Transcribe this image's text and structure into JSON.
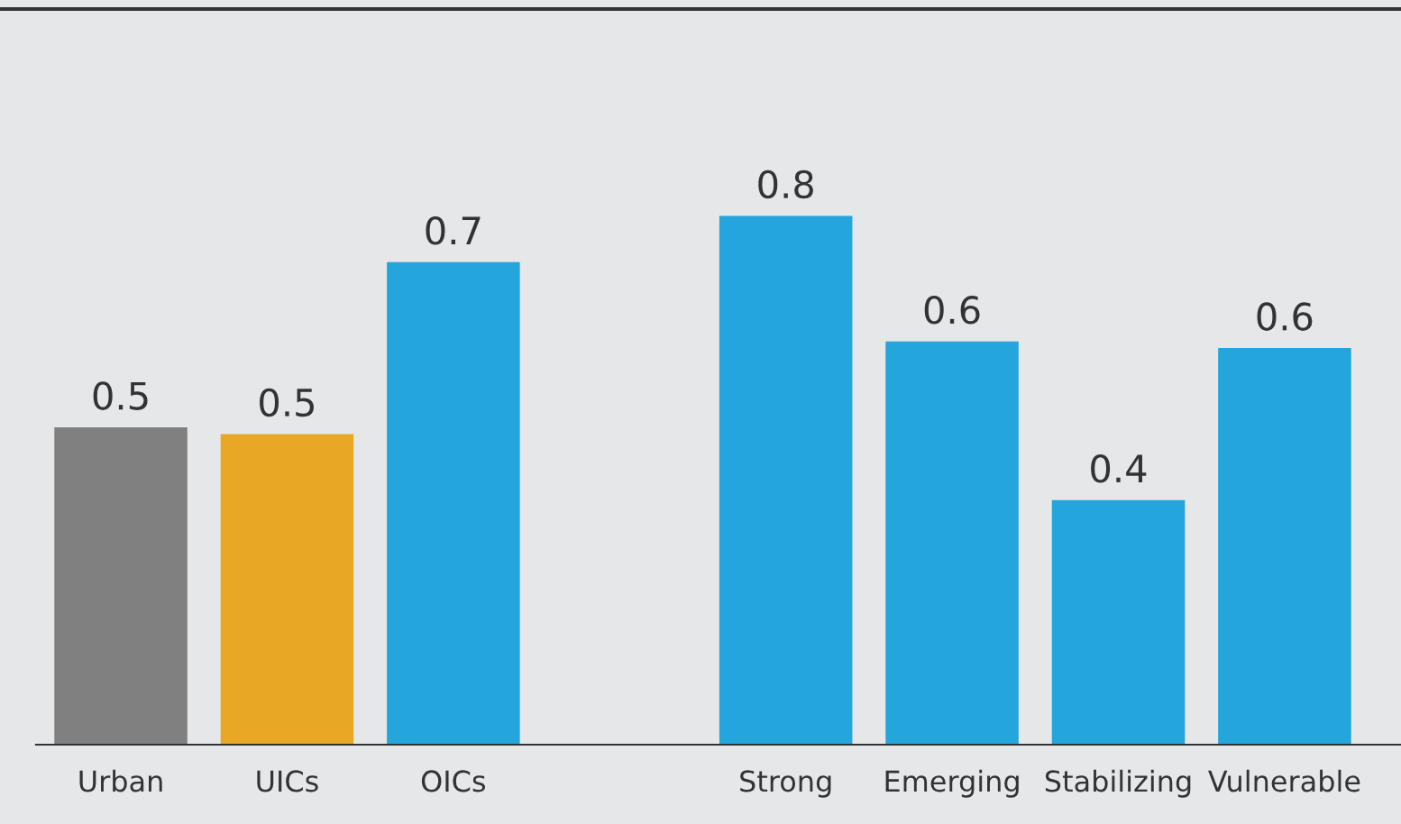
{
  "chart_data": {
    "type": "bar",
    "categories": [
      "Urban",
      "UICs",
      "OICs",
      null,
      "Strong",
      "Emerging",
      "Stabilizing",
      "Vulnerable"
    ],
    "values": [
      0.48,
      0.47,
      0.73,
      null,
      0.8,
      0.61,
      0.37,
      0.6
    ],
    "colors": [
      "#808080",
      "#e8a825",
      "#24a5dc",
      null,
      "#24a5dc",
      "#24a5dc",
      "#24a5dc",
      "#24a5dc"
    ],
    "value_labels": [
      "0.5",
      "0.5",
      "0.7",
      null,
      "0.8",
      "0.6",
      "0.4",
      "0.6"
    ],
    "grid": false,
    "legend": false,
    "tick_labels": "x"
  }
}
